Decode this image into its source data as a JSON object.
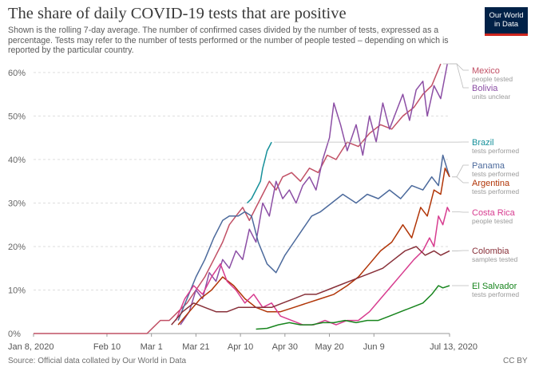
{
  "header": {
    "title": "The share of daily COVID-19 tests that are positive",
    "subtitle": "Shown is the rolling 7-day average. The number of confirmed cases divided by the number of tests, expressed as a percentage. Tests may refer to the number of tests performed or the number of people tested – depending on which is reported by the particular country.",
    "logo_line1": "Our World",
    "logo_line2": "in Data"
  },
  "footer": {
    "source": "Source: Official data collated by Our World in Data",
    "license": "CC BY"
  },
  "colors": {
    "grid": "#dddddd",
    "axis": "#999999",
    "logo_bg": "#002147",
    "logo_accent": "#ce261e"
  },
  "chart_data": {
    "type": "line",
    "title": "The share of daily COVID-19 tests that are positive",
    "x_ticks": [
      "Jan 8, 2020",
      "Feb 10",
      "Mar 1",
      "Mar 21",
      "Apr 10",
      "Apr 30",
      "May 20",
      "Jun 9",
      "Jul 13, 2020"
    ],
    "x_tick_days": [
      0,
      33,
      53,
      73,
      93,
      113,
      133,
      153,
      187
    ],
    "y_ticks": [
      "0%",
      "10%",
      "20%",
      "30%",
      "40%",
      "50%",
      "60%"
    ],
    "ylim": [
      0,
      62
    ],
    "x_range": [
      "2020-01-08",
      "2020-07-13"
    ],
    "grid": true,
    "legend": "right (direct line labels)",
    "series": [
      {
        "name": "Mexico",
        "note": "people tested",
        "color": "#c15065",
        "points": [
          [
            "2020-01-08",
            0
          ],
          [
            "2020-02-28",
            0
          ],
          [
            "2020-03-02",
            1.5
          ],
          [
            "2020-03-05",
            3
          ],
          [
            "2020-03-09",
            3
          ],
          [
            "2020-03-13",
            5
          ],
          [
            "2020-03-17",
            7
          ],
          [
            "2020-03-21",
            10
          ],
          [
            "2020-03-25",
            13
          ],
          [
            "2020-03-29",
            17
          ],
          [
            "2020-04-02",
            21
          ],
          [
            "2020-04-05",
            25
          ],
          [
            "2020-04-08",
            27
          ],
          [
            "2020-04-11",
            29
          ],
          [
            "2020-04-14",
            26
          ],
          [
            "2020-04-17",
            29
          ],
          [
            "2020-04-20",
            32
          ],
          [
            "2020-04-23",
            35
          ],
          [
            "2020-04-26",
            33
          ],
          [
            "2020-04-29",
            36
          ],
          [
            "2020-05-03",
            37
          ],
          [
            "2020-05-07",
            35
          ],
          [
            "2020-05-11",
            38
          ],
          [
            "2020-05-15",
            37
          ],
          [
            "2020-05-19",
            41
          ],
          [
            "2020-05-23",
            40
          ],
          [
            "2020-05-28",
            44
          ],
          [
            "2020-06-02",
            43
          ],
          [
            "2020-06-07",
            46
          ],
          [
            "2020-06-12",
            48
          ],
          [
            "2020-06-17",
            47
          ],
          [
            "2020-06-22",
            50
          ],
          [
            "2020-06-27",
            52
          ],
          [
            "2020-07-01",
            55
          ],
          [
            "2020-07-05",
            57
          ],
          [
            "2020-07-09",
            62
          ]
        ]
      },
      {
        "name": "Bolivia",
        "note": "units unclear",
        "color": "#8c4fa5",
        "points": [
          [
            "2020-03-14",
            2
          ],
          [
            "2020-03-18",
            5
          ],
          [
            "2020-03-21",
            10
          ],
          [
            "2020-03-24",
            8
          ],
          [
            "2020-03-27",
            14
          ],
          [
            "2020-03-30",
            12
          ],
          [
            "2020-04-02",
            17
          ],
          [
            "2020-04-05",
            15
          ],
          [
            "2020-04-08",
            19
          ],
          [
            "2020-04-11",
            17
          ],
          [
            "2020-04-14",
            24
          ],
          [
            "2020-04-17",
            21
          ],
          [
            "2020-04-20",
            30
          ],
          [
            "2020-04-23",
            27
          ],
          [
            "2020-04-26",
            35
          ],
          [
            "2020-04-29",
            31
          ],
          [
            "2020-05-02",
            33
          ],
          [
            "2020-05-05",
            30
          ],
          [
            "2020-05-08",
            34
          ],
          [
            "2020-05-11",
            36
          ],
          [
            "2020-05-14",
            33
          ],
          [
            "2020-05-17",
            40
          ],
          [
            "2020-05-20",
            45
          ],
          [
            "2020-05-22",
            53
          ],
          [
            "2020-05-25",
            48
          ],
          [
            "2020-05-28",
            42
          ],
          [
            "2020-06-01",
            48
          ],
          [
            "2020-06-04",
            41
          ],
          [
            "2020-06-07",
            50
          ],
          [
            "2020-06-10",
            44
          ],
          [
            "2020-06-13",
            53
          ],
          [
            "2020-06-16",
            47
          ],
          [
            "2020-06-19",
            51
          ],
          [
            "2020-06-22",
            55
          ],
          [
            "2020-06-25",
            49
          ],
          [
            "2020-06-28",
            56
          ],
          [
            "2020-07-01",
            58
          ],
          [
            "2020-07-03",
            50
          ],
          [
            "2020-07-06",
            57
          ],
          [
            "2020-07-09",
            54
          ],
          [
            "2020-07-12",
            62
          ]
        ]
      },
      {
        "name": "Brazil",
        "note": "tests performed",
        "color": "#16909a",
        "points": [
          [
            "2020-04-13",
            30
          ],
          [
            "2020-04-15",
            31
          ],
          [
            "2020-04-17",
            33
          ],
          [
            "2020-04-19",
            35
          ],
          [
            "2020-04-20",
            38
          ],
          [
            "2020-04-21",
            40
          ],
          [
            "2020-04-22",
            42
          ],
          [
            "2020-04-23",
            43
          ],
          [
            "2020-04-24",
            44
          ]
        ]
      },
      {
        "name": "Panama",
        "note": "tests performed",
        "color": "#4c6a9c",
        "points": [
          [
            "2020-03-13",
            3
          ],
          [
            "2020-03-17",
            8
          ],
          [
            "2020-03-21",
            13
          ],
          [
            "2020-03-25",
            17
          ],
          [
            "2020-03-29",
            22
          ],
          [
            "2020-04-02",
            26
          ],
          [
            "2020-04-05",
            27
          ],
          [
            "2020-04-09",
            27
          ],
          [
            "2020-04-12",
            28
          ],
          [
            "2020-04-15",
            27
          ],
          [
            "2020-04-18",
            21
          ],
          [
            "2020-04-22",
            16
          ],
          [
            "2020-04-26",
            14
          ],
          [
            "2020-04-30",
            18
          ],
          [
            "2020-05-04",
            21
          ],
          [
            "2020-05-08",
            24
          ],
          [
            "2020-05-12",
            27
          ],
          [
            "2020-05-16",
            28
          ],
          [
            "2020-05-21",
            30
          ],
          [
            "2020-05-26",
            32
          ],
          [
            "2020-06-01",
            30
          ],
          [
            "2020-06-06",
            32
          ],
          [
            "2020-06-11",
            31
          ],
          [
            "2020-06-16",
            33
          ],
          [
            "2020-06-21",
            31
          ],
          [
            "2020-06-26",
            34
          ],
          [
            "2020-07-01",
            33
          ],
          [
            "2020-07-05",
            36
          ],
          [
            "2020-07-08",
            34
          ],
          [
            "2020-07-10",
            41
          ],
          [
            "2020-07-13",
            36
          ]
        ]
      },
      {
        "name": "Argentina",
        "note": "tests performed",
        "color": "#b13507",
        "points": [
          [
            "2020-03-13",
            2
          ],
          [
            "2020-03-18",
            5
          ],
          [
            "2020-03-23",
            8
          ],
          [
            "2020-03-28",
            10
          ],
          [
            "2020-04-02",
            13
          ],
          [
            "2020-04-07",
            11
          ],
          [
            "2020-04-12",
            8
          ],
          [
            "2020-04-17",
            6
          ],
          [
            "2020-04-22",
            5
          ],
          [
            "2020-04-28",
            5
          ],
          [
            "2020-05-04",
            6
          ],
          [
            "2020-05-10",
            7
          ],
          [
            "2020-05-16",
            8
          ],
          [
            "2020-05-22",
            9
          ],
          [
            "2020-05-28",
            11
          ],
          [
            "2020-06-02",
            13
          ],
          [
            "2020-06-07",
            16
          ],
          [
            "2020-06-12",
            19
          ],
          [
            "2020-06-17",
            21
          ],
          [
            "2020-06-22",
            25
          ],
          [
            "2020-06-26",
            22
          ],
          [
            "2020-06-30",
            29
          ],
          [
            "2020-07-03",
            27
          ],
          [
            "2020-07-06",
            33
          ],
          [
            "2020-07-09",
            32
          ],
          [
            "2020-07-11",
            38
          ],
          [
            "2020-07-13",
            36
          ]
        ]
      },
      {
        "name": "Costa Rica",
        "note": "people tested",
        "color": "#d73c8f",
        "points": [
          [
            "2020-03-12",
            3
          ],
          [
            "2020-03-16",
            8
          ],
          [
            "2020-03-20",
            11
          ],
          [
            "2020-03-24",
            9
          ],
          [
            "2020-03-28",
            13
          ],
          [
            "2020-04-01",
            16
          ],
          [
            "2020-04-04",
            12
          ],
          [
            "2020-04-08",
            10
          ],
          [
            "2020-04-12",
            7
          ],
          [
            "2020-04-16",
            9
          ],
          [
            "2020-04-20",
            6
          ],
          [
            "2020-04-24",
            7
          ],
          [
            "2020-04-28",
            4
          ],
          [
            "2020-05-03",
            3
          ],
          [
            "2020-05-08",
            2
          ],
          [
            "2020-05-13",
            2
          ],
          [
            "2020-05-18",
            3
          ],
          [
            "2020-05-23",
            2
          ],
          [
            "2020-05-28",
            3
          ],
          [
            "2020-06-02",
            3
          ],
          [
            "2020-06-07",
            5
          ],
          [
            "2020-06-12",
            8
          ],
          [
            "2020-06-17",
            11
          ],
          [
            "2020-06-22",
            14
          ],
          [
            "2020-06-27",
            17
          ],
          [
            "2020-07-01",
            19
          ],
          [
            "2020-07-04",
            22
          ],
          [
            "2020-07-06",
            20
          ],
          [
            "2020-07-08",
            27
          ],
          [
            "2020-07-10",
            25
          ],
          [
            "2020-07-12",
            29
          ],
          [
            "2020-07-13",
            28
          ]
        ]
      },
      {
        "name": "Colombia",
        "note": "samples tested",
        "color": "#883039",
        "points": [
          [
            "2020-03-10",
            2
          ],
          [
            "2020-03-15",
            5
          ],
          [
            "2020-03-20",
            7
          ],
          [
            "2020-03-25",
            6
          ],
          [
            "2020-03-30",
            5
          ],
          [
            "2020-04-04",
            5
          ],
          [
            "2020-04-09",
            6
          ],
          [
            "2020-04-14",
            6
          ],
          [
            "2020-04-19",
            6
          ],
          [
            "2020-04-24",
            6
          ],
          [
            "2020-04-29",
            7
          ],
          [
            "2020-05-04",
            8
          ],
          [
            "2020-05-09",
            9
          ],
          [
            "2020-05-14",
            9
          ],
          [
            "2020-05-19",
            10
          ],
          [
            "2020-05-24",
            11
          ],
          [
            "2020-05-29",
            12
          ],
          [
            "2020-06-03",
            13
          ],
          [
            "2020-06-08",
            14
          ],
          [
            "2020-06-13",
            15
          ],
          [
            "2020-06-18",
            17
          ],
          [
            "2020-06-23",
            19
          ],
          [
            "2020-06-28",
            20
          ],
          [
            "2020-07-02",
            18
          ],
          [
            "2020-07-06",
            19
          ],
          [
            "2020-07-09",
            18
          ],
          [
            "2020-07-13",
            19
          ]
        ]
      },
      {
        "name": "El Salvador",
        "note": "tests performed",
        "color": "#18851e",
        "points": [
          [
            "2020-04-17",
            1
          ],
          [
            "2020-04-22",
            1.2
          ],
          [
            "2020-04-27",
            2
          ],
          [
            "2020-05-02",
            2.5
          ],
          [
            "2020-05-07",
            2
          ],
          [
            "2020-05-12",
            2
          ],
          [
            "2020-05-17",
            2.5
          ],
          [
            "2020-05-22",
            2.5
          ],
          [
            "2020-05-27",
            3
          ],
          [
            "2020-06-01",
            2.5
          ],
          [
            "2020-06-06",
            3
          ],
          [
            "2020-06-11",
            3
          ],
          [
            "2020-06-16",
            4
          ],
          [
            "2020-06-21",
            5
          ],
          [
            "2020-06-26",
            6
          ],
          [
            "2020-07-01",
            7
          ],
          [
            "2020-07-05",
            9
          ],
          [
            "2020-07-08",
            11
          ],
          [
            "2020-07-10",
            10.5
          ],
          [
            "2020-07-13",
            11
          ]
        ]
      }
    ]
  }
}
